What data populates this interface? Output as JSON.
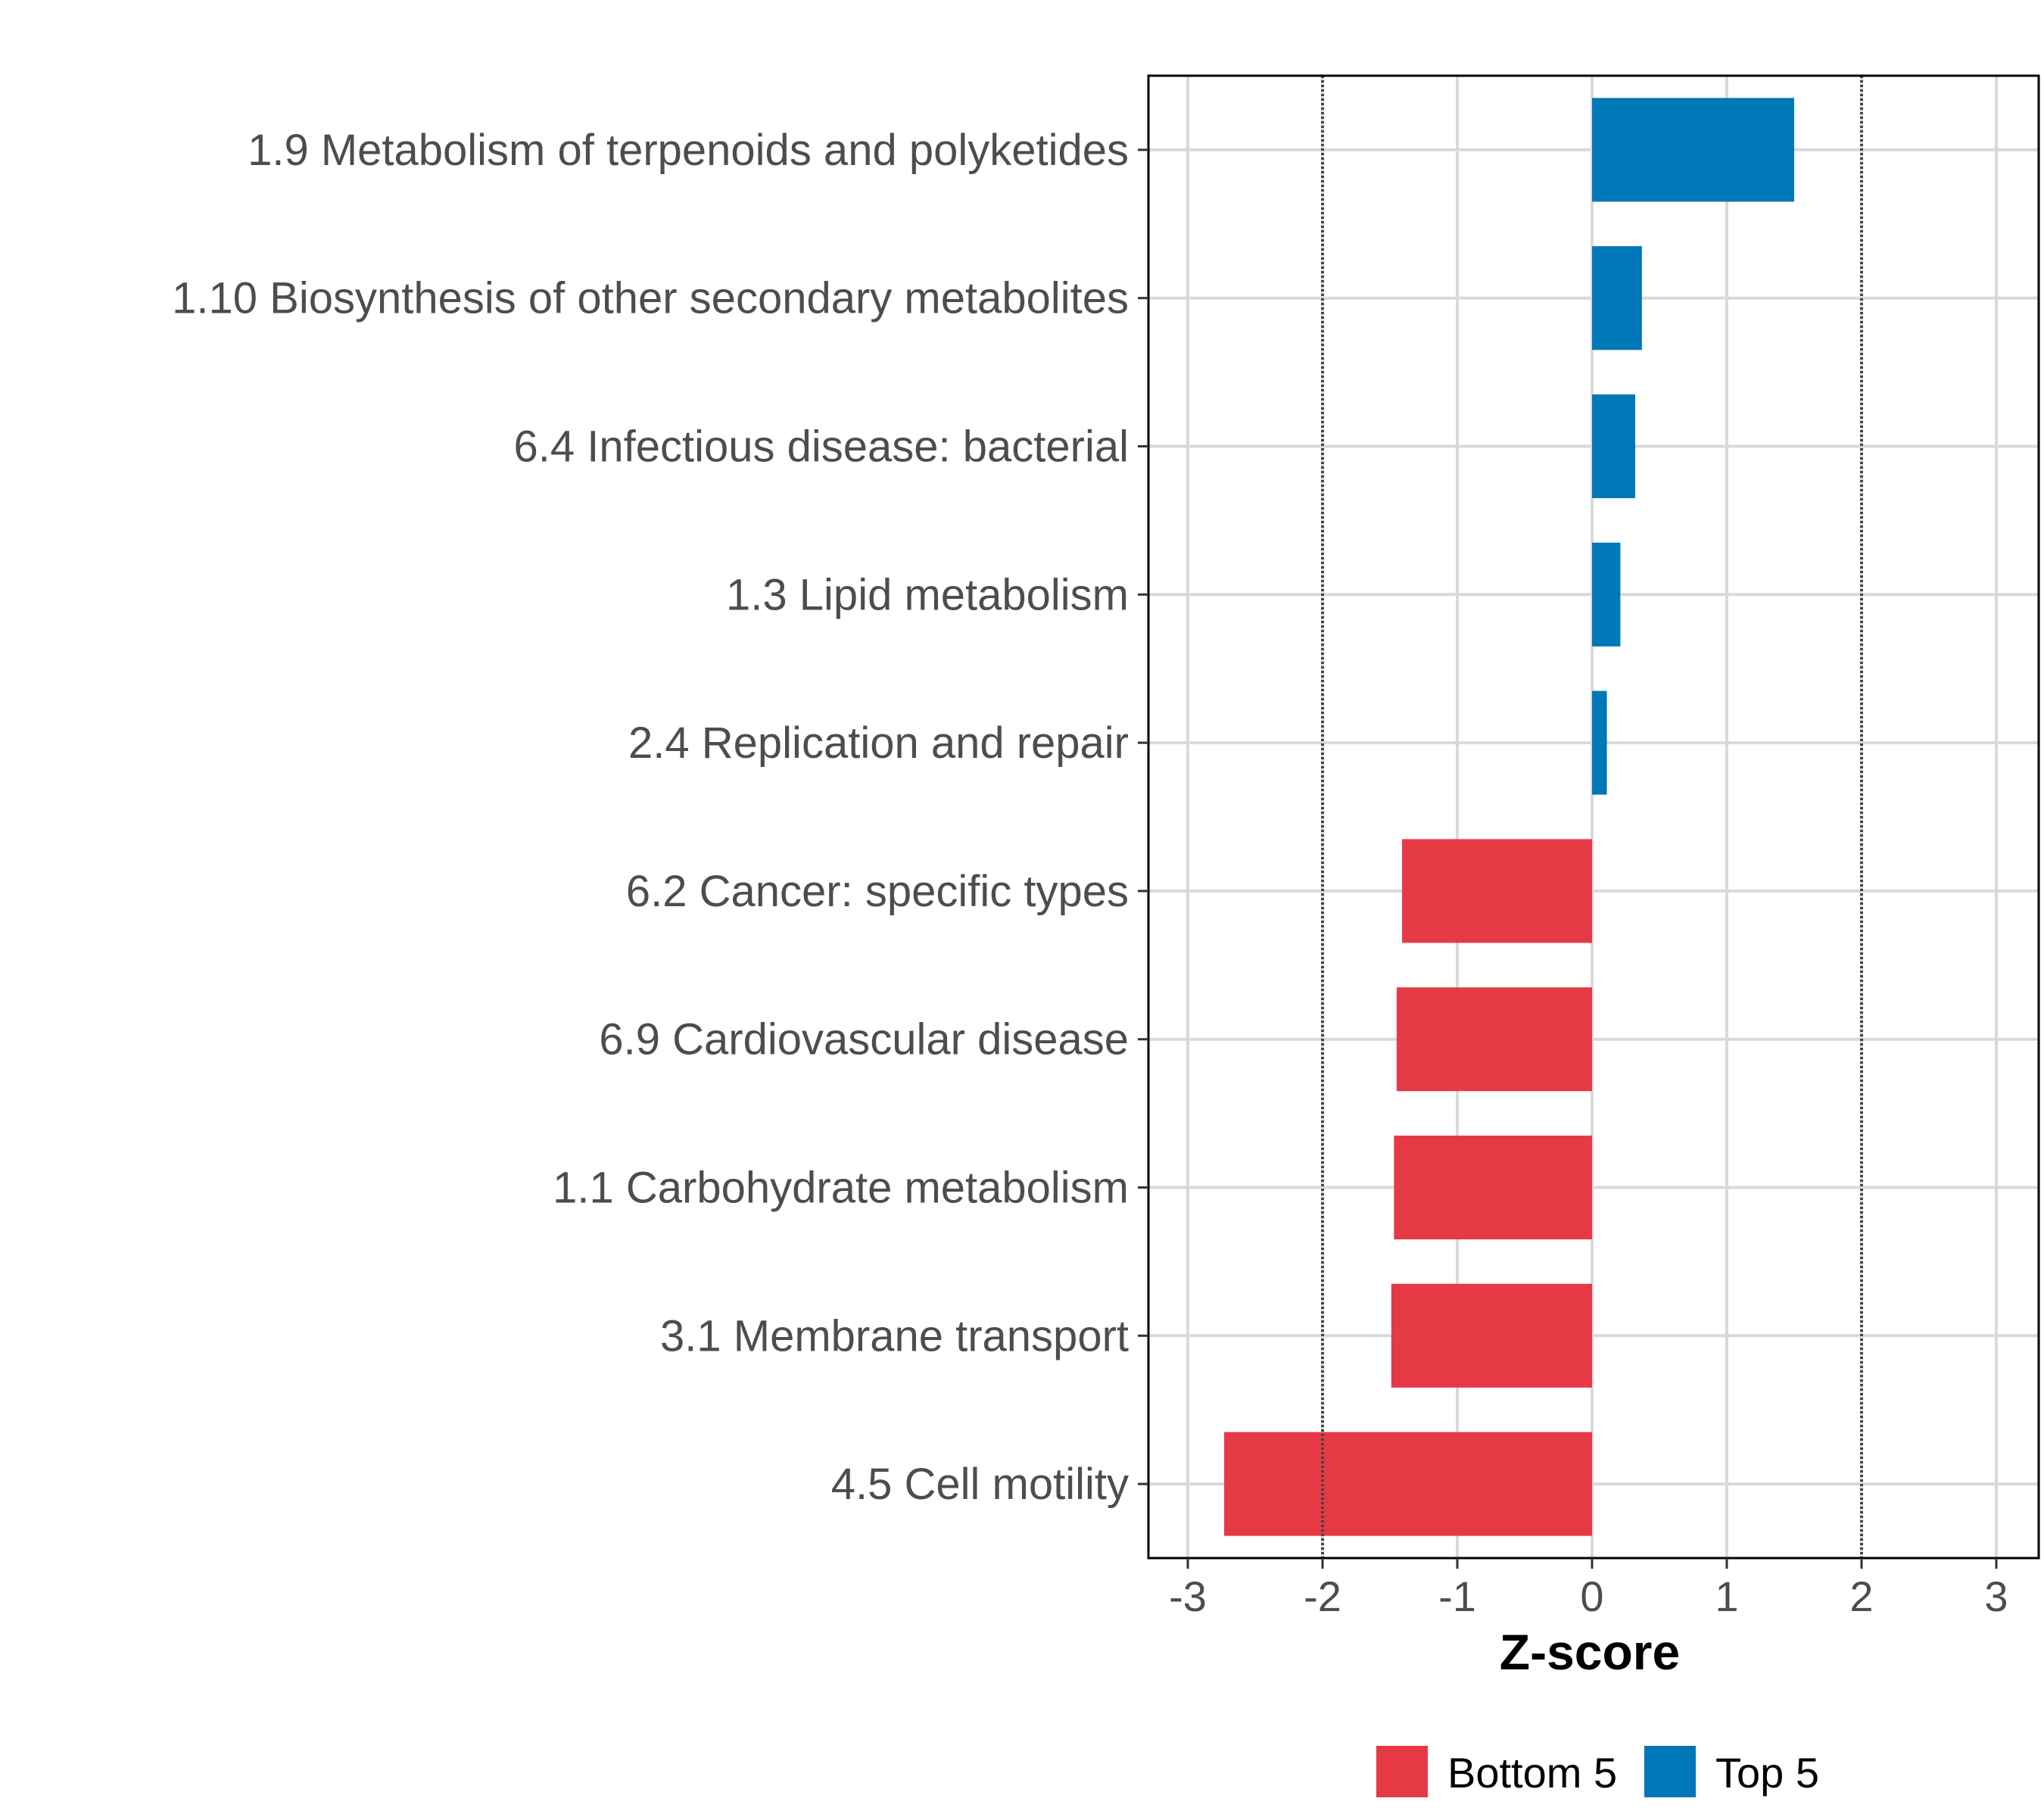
{
  "chart_data": {
    "type": "bar",
    "orientation": "horizontal",
    "title": "",
    "xlabel": "Z-score",
    "ylabel": "",
    "xlim": [
      -3.3,
      3.3
    ],
    "xticks": [
      -3,
      -2,
      -1,
      0,
      1,
      2,
      3
    ],
    "xtick_labels": [
      "-3",
      "-2",
      "-1",
      "0",
      "1",
      "2",
      "3"
    ],
    "reference_lines": [
      -2,
      2
    ],
    "grid": true,
    "legend_position": "bottom",
    "categories": [
      "1.9 Metabolism of terpenoids and polyketides",
      "1.10 Biosynthesis of other secondary metabolites",
      "6.4 Infectious disease: bacterial",
      "1.3 Lipid metabolism",
      "2.4 Replication and repair",
      "6.2 Cancer: specific types",
      "6.9 Cardiovascular disease",
      "1.1 Carbohydrate metabolism",
      "3.1 Membrane transport",
      "4.5 Cell motility"
    ],
    "values": [
      1.5,
      0.37,
      0.32,
      0.21,
      0.11,
      -1.41,
      -1.45,
      -1.47,
      -1.49,
      -2.73
    ],
    "groups": [
      "Top 5",
      "Top 5",
      "Top 5",
      "Top 5",
      "Top 5",
      "Bottom 5",
      "Bottom 5",
      "Bottom 5",
      "Bottom 5",
      "Bottom 5"
    ],
    "legend": [
      {
        "name": "Bottom 5",
        "color": "#e63946"
      },
      {
        "name": "Top 5",
        "color": "#0077b6"
      }
    ]
  }
}
